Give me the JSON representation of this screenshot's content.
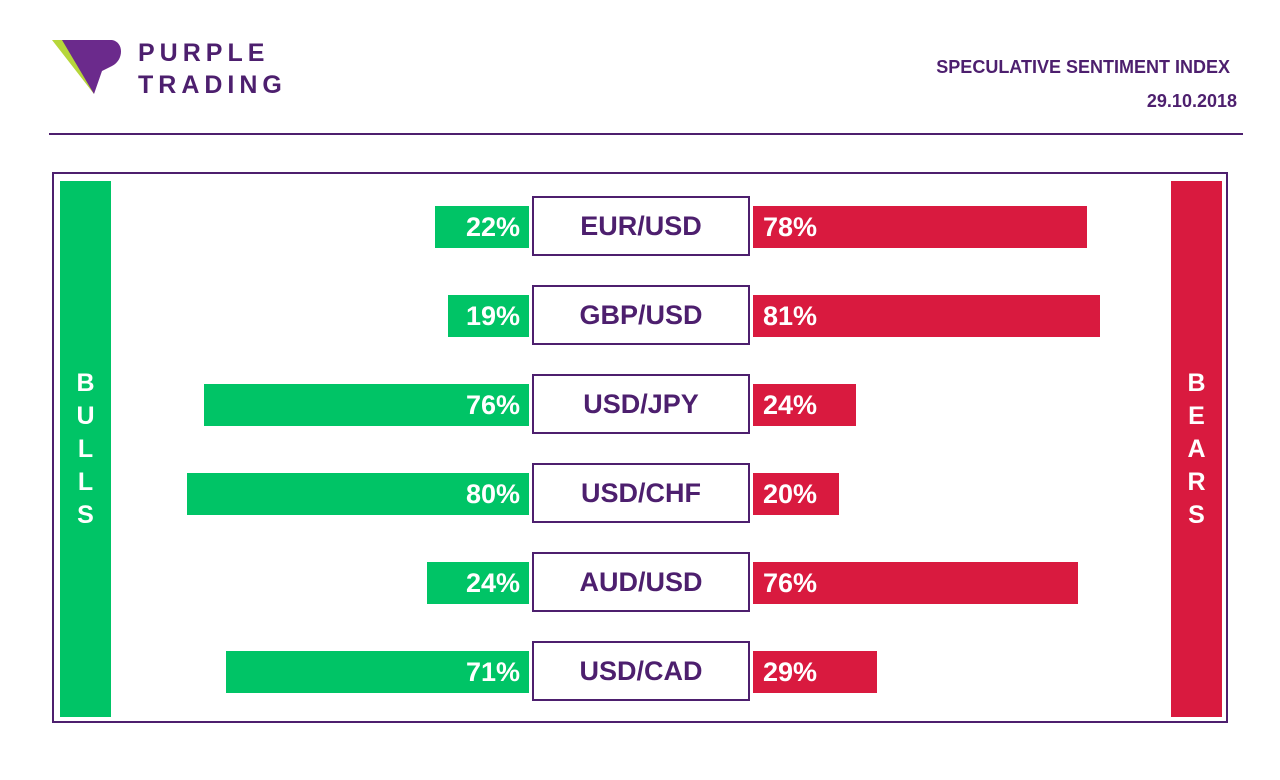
{
  "brand": {
    "line1": "PURPLE",
    "line2": "TRADING"
  },
  "header": {
    "title": "SPECULATIVE SENTIMENT INDEX",
    "date": "29.10.2018"
  },
  "colors": {
    "bull": "#00c466",
    "bear": "#d91a3f",
    "brand": "#4d1f6e"
  },
  "labels": {
    "bulls": "BULLS",
    "bears": "BEARS"
  },
  "chart_data": {
    "type": "bar",
    "title": "SPECULATIVE SENTIMENT INDEX",
    "categories": [
      "EUR/USD",
      "GBP/USD",
      "USD/JPY",
      "USD/CHF",
      "AUD/USD",
      "USD/CAD"
    ],
    "series": [
      {
        "name": "BULLS",
        "values": [
          22,
          19,
          76,
          80,
          24,
          71
        ],
        "labels": [
          "22%",
          "19%",
          "76%",
          "80%",
          "24%",
          "71%"
        ]
      },
      {
        "name": "BEARS",
        "values": [
          78,
          81,
          24,
          20,
          76,
          29
        ],
        "labels": [
          "78%",
          "81%",
          "24%",
          "20%",
          "76%",
          "29%"
        ]
      }
    ],
    "unit": "%",
    "ylim": [
      0,
      100
    ]
  }
}
